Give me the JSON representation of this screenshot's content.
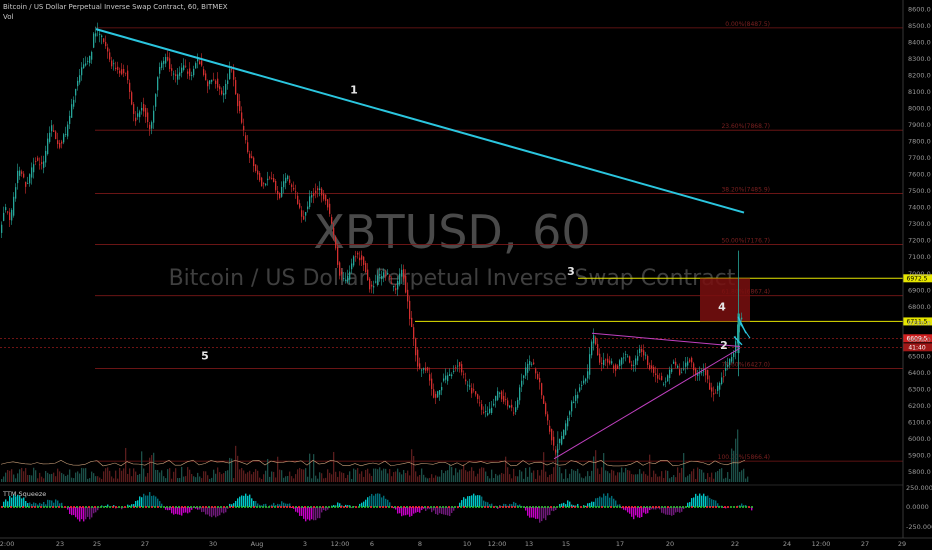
{
  "header": {
    "title": "Bitcoin / US Dollar Perpetual Inverse Swap Contract, 60, BITMEX",
    "volume_label": "Vol"
  },
  "watermark": {
    "symbol": "XBTUSD, 60",
    "description": "Bitcoin / US Dollar Perpetual Inverse Swap Contract"
  },
  "indicator": {
    "label": "TTM Squeeze",
    "ticks": [
      "250.0000",
      "0.0000",
      "-250.0000"
    ]
  },
  "colors": {
    "background": "#000000",
    "up": "#26a69a",
    "down": "#d32f2f",
    "trendline": "#2bc6df",
    "triangle": "#c040c0",
    "level": "#e6e600",
    "fib": "#7a1818",
    "box": "#7a0f0f",
    "volume_avg": "#c9a07a"
  },
  "chart_data": {
    "type": "candlestick",
    "x_tick_labels": [
      "12:00",
      "23",
      "25",
      "27",
      "30",
      "Aug",
      "3",
      "12:00",
      "6",
      "8",
      "10",
      "12:00",
      "13",
      "15",
      "17",
      "20",
      "22",
      "24",
      "12:00",
      "27",
      "29"
    ],
    "y_tick_labels": [
      "8600.0",
      "8500.0",
      "8400.0",
      "8300.0",
      "8200.0",
      "8100.0",
      "8000.0",
      "7900.0",
      "7800.0",
      "7700.0",
      "7600.0",
      "7500.0",
      "7400.0",
      "7300.0",
      "7200.0",
      "7100.0",
      "7000.0",
      "6900.0",
      "6800.0",
      "6700.0",
      "6600.0",
      "6500.0",
      "6400.0",
      "6300.0",
      "6200.0",
      "6100.0",
      "6000.0",
      "5900.0",
      "5800.0"
    ],
    "ylim": [
      5740,
      8620
    ],
    "price_path": [
      [
        0,
        7230
      ],
      [
        6,
        7400
      ],
      [
        12,
        7330
      ],
      [
        20,
        7650
      ],
      [
        28,
        7520
      ],
      [
        36,
        7700
      ],
      [
        44,
        7640
      ],
      [
        52,
        7900
      ],
      [
        60,
        7770
      ],
      [
        68,
        7860
      ],
      [
        76,
        8100
      ],
      [
        84,
        8250
      ],
      [
        92,
        8320
      ],
      [
        96,
        8480
      ],
      [
        104,
        8420
      ],
      [
        112,
        8280
      ],
      [
        120,
        8230
      ],
      [
        128,
        8210
      ],
      [
        136,
        7920
      ],
      [
        144,
        8020
      ],
      [
        152,
        7850
      ],
      [
        160,
        8260
      ],
      [
        168,
        8300
      ],
      [
        176,
        8180
      ],
      [
        184,
        8250
      ],
      [
        192,
        8210
      ],
      [
        200,
        8300
      ],
      [
        208,
        8140
      ],
      [
        216,
        8180
      ],
      [
        224,
        8080
      ],
      [
        232,
        8250
      ],
      [
        240,
        8000
      ],
      [
        248,
        7760
      ],
      [
        256,
        7650
      ],
      [
        264,
        7530
      ],
      [
        272,
        7600
      ],
      [
        280,
        7460
      ],
      [
        288,
        7590
      ],
      [
        296,
        7500
      ],
      [
        304,
        7330
      ],
      [
        312,
        7470
      ],
      [
        320,
        7520
      ],
      [
        328,
        7440
      ],
      [
        336,
        7200
      ],
      [
        340,
        7000
      ],
      [
        348,
        6950
      ],
      [
        356,
        7120
      ],
      [
        364,
        7080
      ],
      [
        372,
        6900
      ],
      [
        380,
        6980
      ],
      [
        388,
        7000
      ],
      [
        396,
        6900
      ],
      [
        404,
        7030
      ],
      [
        412,
        6700
      ],
      [
        420,
        6420
      ],
      [
        428,
        6430
      ],
      [
        436,
        6230
      ],
      [
        444,
        6350
      ],
      [
        452,
        6400
      ],
      [
        460,
        6460
      ],
      [
        468,
        6320
      ],
      [
        476,
        6280
      ],
      [
        484,
        6150
      ],
      [
        492,
        6180
      ],
      [
        500,
        6290
      ],
      [
        508,
        6210
      ],
      [
        516,
        6160
      ],
      [
        524,
        6380
      ],
      [
        532,
        6480
      ],
      [
        540,
        6370
      ],
      [
        548,
        6120
      ],
      [
        556,
        5920
      ],
      [
        564,
        6020
      ],
      [
        572,
        6200
      ],
      [
        580,
        6300
      ],
      [
        588,
        6360
      ],
      [
        594,
        6640
      ],
      [
        602,
        6450
      ],
      [
        610,
        6480
      ],
      [
        618,
        6420
      ],
      [
        626,
        6520
      ],
      [
        634,
        6440
      ],
      [
        642,
        6560
      ],
      [
        650,
        6450
      ],
      [
        658,
        6380
      ],
      [
        666,
        6330
      ],
      [
        674,
        6460
      ],
      [
        682,
        6400
      ],
      [
        690,
        6490
      ],
      [
        698,
        6380
      ],
      [
        706,
        6420
      ],
      [
        714,
        6250
      ],
      [
        722,
        6350
      ],
      [
        730,
        6470
      ],
      [
        736,
        6530
      ],
      [
        740,
        6720
      ]
    ],
    "volume_spikes": [
      [
        152,
        18
      ],
      [
        236,
        22
      ],
      [
        412,
        14
      ],
      [
        556,
        34
      ],
      [
        594,
        20
      ],
      [
        736,
        42
      ]
    ],
    "fib_levels": [
      {
        "label": "0.00%(8487.5)",
        "price": 8487.5
      },
      {
        "label": "23.60%(7868.7)",
        "price": 7868.7
      },
      {
        "label": "38.20%(7485.9)",
        "price": 7485.9
      },
      {
        "label": "50.00%(7176.7)",
        "price": 7176.7
      },
      {
        "label": "61.80%(6867.4)",
        "price": 6867.4
      },
      {
        "label": "78.60%(6427.0)",
        "price": 6427.0
      },
      {
        "label": "100.00%(5866.4)",
        "price": 5866.4
      }
    ],
    "horizontal_levels": [
      {
        "label": "6972.5",
        "price": 6972.5
      },
      {
        "label": "6711.5",
        "price": 6711.5
      },
      {
        "label": "6609.5",
        "price": 6609.5
      },
      {
        "label": "41:40",
        "price": 6555
      }
    ],
    "trendline_1": {
      "x1": 96,
      "y1": 8480,
      "x2": 744,
      "y2": 7370
    },
    "triangle": {
      "top": {
        "x1": 592,
        "y1": 6640,
        "x2": 740,
        "y2": 6560
      },
      "bottom": {
        "x1": 554,
        "y1": 5880,
        "x2": 740,
        "y2": 6550
      }
    },
    "resistance_box": {
      "x1": 700,
      "x2": 750,
      "y1": 6972.5,
      "y2": 6711.5
    },
    "annotations": [
      {
        "text": "1",
        "x": 354,
        "y": 8090
      },
      {
        "text": "2",
        "x": 724,
        "y": 6545
      },
      {
        "text": "3",
        "x": 571,
        "y": 6992
      },
      {
        "text": "4",
        "x": 722,
        "y": 6778
      },
      {
        "text": "5",
        "x": 205,
        "y": 6480
      }
    ]
  }
}
